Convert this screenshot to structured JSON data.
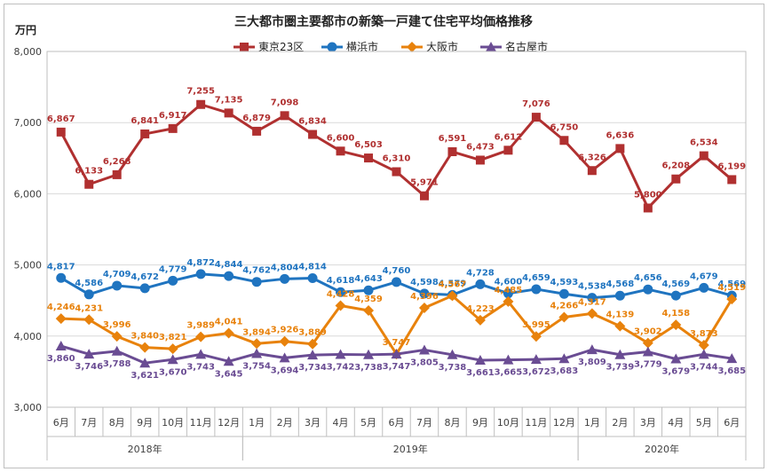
{
  "chart_data": {
    "type": "line",
    "title": "三大都市圏主要都市の新築一戸建て住宅平均価格推移",
    "ylabel": "万円",
    "ylim": [
      3000,
      8000
    ],
    "yticks": [
      3000,
      4000,
      5000,
      6000,
      7000,
      8000
    ],
    "ytick_labels": [
      "3,000",
      "4,000",
      "5,000",
      "6,000",
      "7,000",
      "8,000"
    ],
    "categories": [
      "6月",
      "7月",
      "8月",
      "9月",
      "10月",
      "11月",
      "12月",
      "1月",
      "2月",
      "3月",
      "4月",
      "5月",
      "6月",
      "7月",
      "8月",
      "9月",
      "10月",
      "11月",
      "12月",
      "1月",
      "2月",
      "3月",
      "4月",
      "5月",
      "6月"
    ],
    "year_groups": [
      {
        "label": "2018年",
        "start": 0,
        "end": 6
      },
      {
        "label": "2019年",
        "start": 7,
        "end": 18
      },
      {
        "label": "2020年",
        "start": 19,
        "end": 24
      }
    ],
    "legend_position": "top-center",
    "series": [
      {
        "name": "東京23区",
        "color": "#b03030",
        "marker": "square",
        "values": [
          6867,
          6133,
          6268,
          6841,
          6917,
          7255,
          7135,
          6879,
          7098,
          6834,
          6600,
          6503,
          6310,
          5971,
          6591,
          6473,
          6612,
          7076,
          6750,
          6326,
          6636,
          5800,
          6208,
          6534,
          6199
        ],
        "labels": [
          "6,867",
          "6,133",
          "6,268",
          "6,841",
          "6,917",
          "7,255",
          "7,135",
          "6,879",
          "7,098",
          "6,834",
          "6,600",
          "6,503",
          "6,310",
          "5,971",
          "6,591",
          "6,473",
          "6,612",
          "7,076",
          "6,750",
          "6,326",
          "6,636",
          "5,800",
          "6,208",
          "6,534",
          "6,199"
        ]
      },
      {
        "name": "横浜市",
        "color": "#1f74c0",
        "marker": "circle",
        "values": [
          4817,
          4586,
          4709,
          4672,
          4779,
          4872,
          4844,
          4762,
          4804,
          4814,
          4618,
          4643,
          4760,
          4598,
          4579,
          4728,
          4600,
          4659,
          4593,
          4538,
          4568,
          4656,
          4569,
          4679,
          4569
        ],
        "labels": [
          "4,817",
          "4,586",
          "4,709",
          "4,672",
          "4,779",
          "4,872",
          "4,844",
          "4,762",
          "4,804",
          "4,814",
          "4,618",
          "4,643",
          "4,760",
          "4,598",
          "4,579",
          "4,728",
          "4,600",
          "4,659",
          "4,593",
          "4,538",
          "4,568",
          "4,656",
          "4,569",
          "4,679",
          "4,569"
        ]
      },
      {
        "name": "大阪市",
        "color": "#e8820c",
        "marker": "diamond",
        "values": [
          4246,
          4231,
          3996,
          3840,
          3821,
          3989,
          4041,
          3894,
          3926,
          3889,
          4428,
          4359,
          3747,
          4396,
          4567,
          4223,
          4485,
          3995,
          4266,
          4317,
          4139,
          3902,
          4158,
          3873,
          4519
        ],
        "labels": [
          "4,246",
          "4,231",
          "3,996",
          "3,840",
          "3,821",
          "3,989",
          "4,041",
          "3,894",
          "3,926",
          "3,889",
          "4,428",
          "4,359",
          "3,747",
          "4,396",
          "4,567",
          "4,223",
          "4,485",
          "3,995",
          "4,266",
          "4,317",
          "4,139",
          "3,902",
          "4,158",
          "3,873",
          "4,519"
        ]
      },
      {
        "name": "名古屋市",
        "color": "#6a4c93",
        "marker": "triangle",
        "values": [
          3860,
          3746,
          3788,
          3621,
          3670,
          3743,
          3645,
          3754,
          3694,
          3734,
          3742,
          3738,
          3747,
          3805,
          3738,
          3661,
          3665,
          3672,
          3683,
          3809,
          3739,
          3779,
          3679,
          3744,
          3685
        ],
        "labels": [
          "3,860",
          "3,746",
          "3,788",
          "3,621",
          "3,670",
          "3,743",
          "3,645",
          "3,754",
          "3,694",
          "3,734",
          "3,742",
          "3,738",
          "3,747",
          "3,805",
          "3,738",
          "3,661",
          "3,665",
          "3,672",
          "3,683",
          "3,809",
          "3,739",
          "3,779",
          "3,679",
          "3,744",
          "3,685"
        ]
      }
    ]
  }
}
